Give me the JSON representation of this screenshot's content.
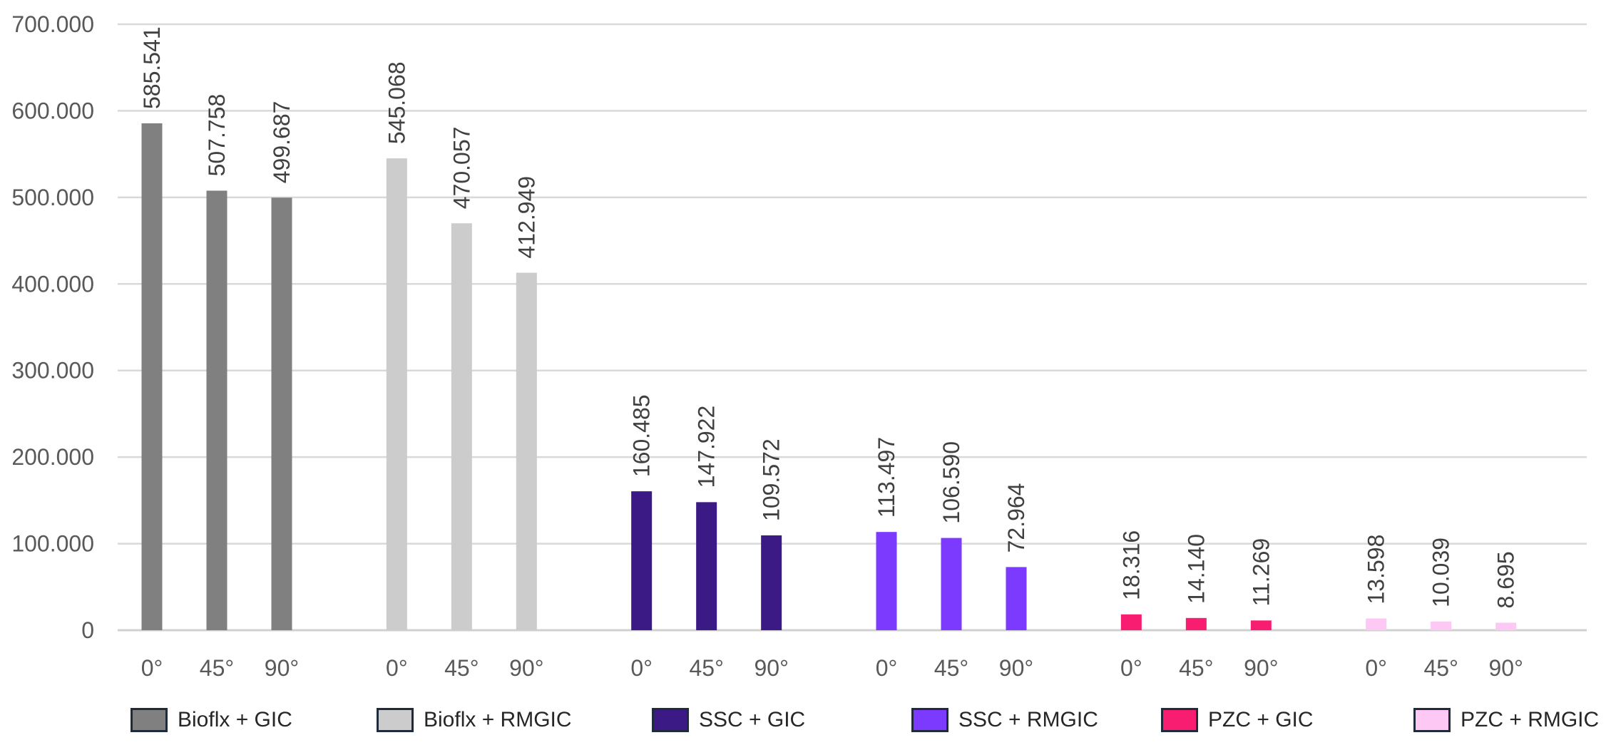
{
  "chart_data": {
    "type": "bar",
    "categories": [
      "0°",
      "45°",
      "90°"
    ],
    "ylim": [
      0,
      700
    ],
    "yticks": [
      0,
      100,
      200,
      300,
      400,
      500,
      600,
      700
    ],
    "ytick_labels": [
      "0",
      "100.000",
      "200.000",
      "300.000",
      "400.000",
      "500.000",
      "600.000",
      "700.000"
    ],
    "grid": true,
    "legend_position": "bottom",
    "series": [
      {
        "name": "Bioflx + GIC",
        "color": "#808080",
        "values": [
          585.541,
          507.758,
          499.687
        ],
        "labels": [
          "585.541",
          "507.758",
          "499.687"
        ]
      },
      {
        "name": "Bioflx + RMGIC",
        "color": "#cccccc",
        "values": [
          545.068,
          470.057,
          412.949
        ],
        "labels": [
          "545.068",
          "470.057",
          "412.949"
        ]
      },
      {
        "name": "SSC + GIC",
        "color": "#3b1a86",
        "values": [
          160.485,
          147.922,
          109.572
        ],
        "labels": [
          "160.485",
          "147.922",
          "109.572"
        ]
      },
      {
        "name": "SSC + RMGIC",
        "color": "#7c3aff",
        "values": [
          113.497,
          106.59,
          72.964
        ],
        "labels": [
          "113.497",
          "106.590",
          "72.964"
        ]
      },
      {
        "name": "PZC + GIC",
        "color": "#f91d72",
        "values": [
          18.316,
          14.14,
          11.269
        ],
        "labels": [
          "18.316",
          "14.140",
          "11.269"
        ]
      },
      {
        "name": "PZC + RMGIC",
        "color": "#fdc8f4",
        "values": [
          13.598,
          10.039,
          8.695
        ],
        "labels": [
          "13.598",
          "10.039",
          "8.695"
        ]
      }
    ]
  }
}
